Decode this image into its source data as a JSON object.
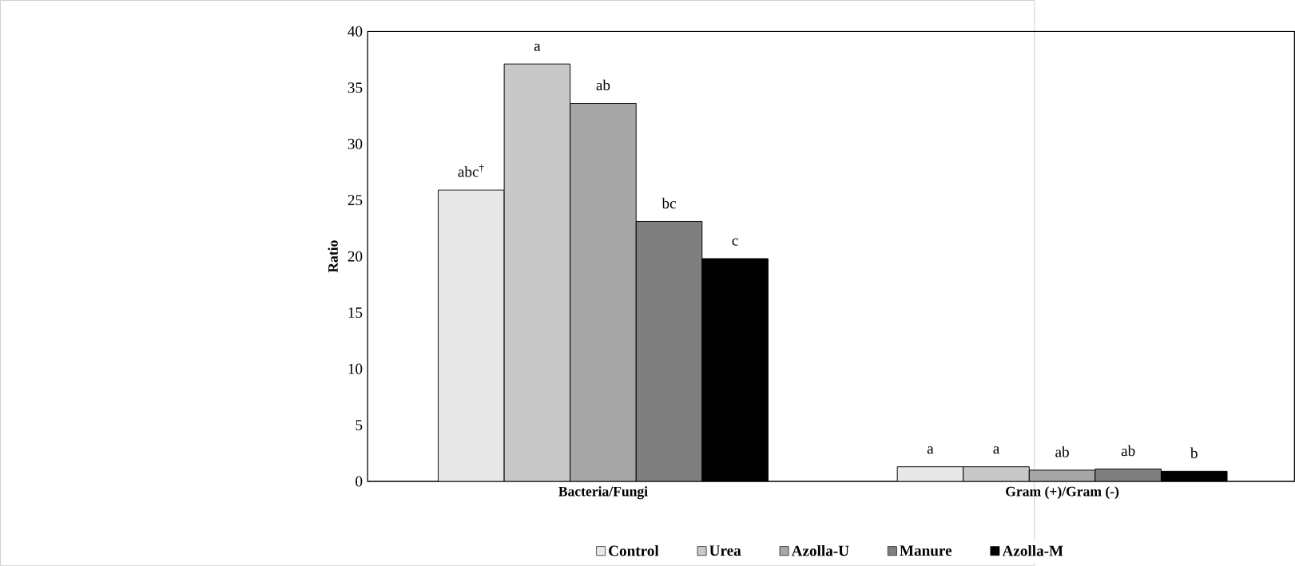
{
  "chart_data": {
    "type": "bar",
    "ylabel": "Ratio",
    "categories": [
      "Bacteria/Fungi",
      "Gram (+)/Gram (-)"
    ],
    "series": [
      {
        "name": "Control",
        "color": "#e8e8e8",
        "values": [
          25.9,
          1.3
        ],
        "value_labels": [
          "abc$^{†}$",
          "a"
        ]
      },
      {
        "name": "Urea",
        "color": "#c8c8c8",
        "values": [
          37.1,
          1.3
        ],
        "value_labels": [
          "a",
          "a"
        ]
      },
      {
        "name": "Azolla-U",
        "color": "#a6a6a6",
        "values": [
          33.6,
          1.0
        ],
        "value_labels": [
          "ab",
          "ab"
        ]
      },
      {
        "name": "Manure",
        "color": "#7f7f7f",
        "values": [
          23.1,
          1.1
        ],
        "value_labels": [
          "bc",
          "ab"
        ]
      },
      {
        "name": "Azolla-M",
        "color": "#000000",
        "values": [
          19.8,
          0.9
        ],
        "value_labels": [
          "c",
          "b"
        ]
      }
    ],
    "ylim": [
      0,
      40
    ],
    "yticks": [
      0,
      5,
      10,
      15,
      20,
      25,
      30,
      35,
      40
    ],
    "legend": "bottom"
  }
}
